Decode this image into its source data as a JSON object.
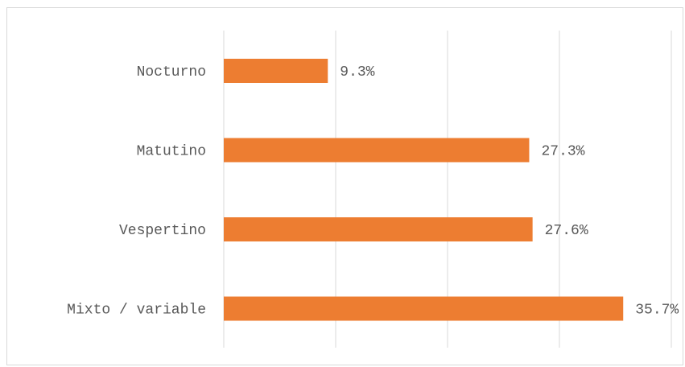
{
  "chart_data": {
    "type": "bar",
    "orientation": "horizontal",
    "categories": [
      "Nocturno",
      "Matutino",
      "Vespertino",
      "Mixto / variable"
    ],
    "values": [
      9.3,
      27.3,
      27.6,
      35.7
    ],
    "value_labels": [
      "9.3%",
      "27.3%",
      "27.6%",
      "35.7%"
    ],
    "xlim": [
      0,
      40
    ],
    "grid": true,
    "legend": "none",
    "bar_color": "#ED7D31",
    "grid_color": "#D9D9D9",
    "label_color": "#595959"
  }
}
